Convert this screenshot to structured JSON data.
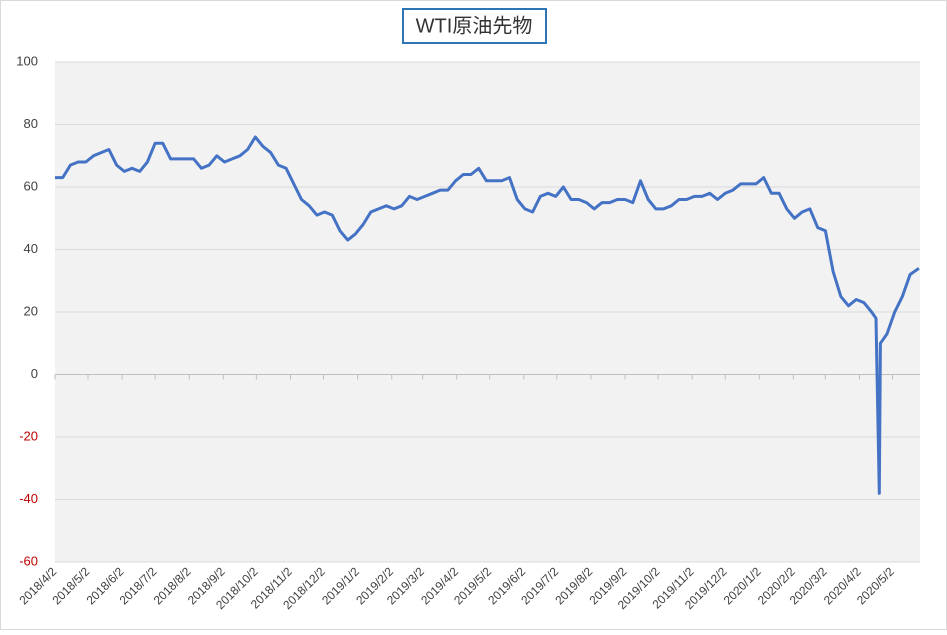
{
  "chart_data": {
    "type": "line",
    "title": "WTI原油先物",
    "x": [
      "2018/4/2",
      "2018/4/9",
      "2018/4/16",
      "2018/4/23",
      "2018/4/30",
      "2018/5/7",
      "2018/5/14",
      "2018/5/21",
      "2018/5/28",
      "2018/6/4",
      "2018/6/11",
      "2018/6/18",
      "2018/6/25",
      "2018/7/2",
      "2018/7/9",
      "2018/7/16",
      "2018/7/23",
      "2018/7/30",
      "2018/8/6",
      "2018/8/13",
      "2018/8/20",
      "2018/8/27",
      "2018/9/3",
      "2018/9/10",
      "2018/9/17",
      "2018/9/24",
      "2018/10/1",
      "2018/10/8",
      "2018/10/15",
      "2018/10/22",
      "2018/10/29",
      "2018/11/5",
      "2018/11/12",
      "2018/11/19",
      "2018/11/26",
      "2018/12/3",
      "2018/12/10",
      "2018/12/17",
      "2018/12/24",
      "2018/12/31",
      "2019/1/7",
      "2019/1/14",
      "2019/1/21",
      "2019/1/28",
      "2019/2/4",
      "2019/2/11",
      "2019/2/18",
      "2019/2/25",
      "2019/3/4",
      "2019/3/11",
      "2019/3/18",
      "2019/3/25",
      "2019/4/1",
      "2019/4/8",
      "2019/4/15",
      "2019/4/22",
      "2019/4/29",
      "2019/5/6",
      "2019/5/13",
      "2019/5/20",
      "2019/5/27",
      "2019/6/3",
      "2019/6/10",
      "2019/6/17",
      "2019/6/24",
      "2019/7/1",
      "2019/7/8",
      "2019/7/15",
      "2019/7/22",
      "2019/7/29",
      "2019/8/5",
      "2019/8/12",
      "2019/8/19",
      "2019/8/26",
      "2019/9/2",
      "2019/9/9",
      "2019/9/16",
      "2019/9/23",
      "2019/9/30",
      "2019/10/7",
      "2019/10/14",
      "2019/10/21",
      "2019/10/28",
      "2019/11/4",
      "2019/11/11",
      "2019/11/18",
      "2019/11/25",
      "2019/12/2",
      "2019/12/9",
      "2019/12/16",
      "2019/12/23",
      "2019/12/30",
      "2020/1/6",
      "2020/1/13",
      "2020/1/20",
      "2020/1/27",
      "2020/2/3",
      "2020/2/10",
      "2020/2/17",
      "2020/2/24",
      "2020/3/2",
      "2020/3/9",
      "2020/3/16",
      "2020/3/23",
      "2020/3/30",
      "2020/4/6",
      "2020/4/13",
      "2020/4/17",
      "2020/4/20",
      "2020/4/21",
      "2020/4/27",
      "2020/5/4",
      "2020/5/11",
      "2020/5/18",
      "2020/5/26"
    ],
    "values": [
      63,
      63,
      67,
      68,
      68,
      70,
      71,
      72,
      67,
      65,
      66,
      65,
      68,
      74,
      74,
      69,
      69,
      69,
      69,
      66,
      67,
      70,
      68,
      69,
      70,
      72,
      76,
      73,
      71,
      67,
      66,
      61,
      56,
      54,
      51,
      52,
      51,
      46,
      43,
      45,
      48,
      52,
      53,
      54,
      53,
      54,
      57,
      56,
      57,
      58,
      59,
      59,
      62,
      64,
      64,
      66,
      62,
      62,
      62,
      63,
      56,
      53,
      52,
      57,
      58,
      57,
      60,
      56,
      56,
      55,
      53,
      55,
      55,
      56,
      56,
      55,
      62,
      56,
      53,
      53,
      54,
      56,
      56,
      57,
      57,
      58,
      56,
      58,
      59,
      61,
      61,
      61,
      63,
      58,
      58,
      53,
      50,
      52,
      53,
      47,
      46,
      33,
      25,
      22,
      24,
      23,
      20,
      18,
      -38,
      10,
      13,
      20,
      25,
      32,
      34
    ],
    "color": "#4472c4",
    "xlim": [
      "2018/4/2",
      "2020/5/27"
    ],
    "xticks": [
      "2018/4/2",
      "2018/5/2",
      "2018/6/2",
      "2018/7/2",
      "2018/8/2",
      "2018/9/2",
      "2018/10/2",
      "2018/11/2",
      "2018/12/2",
      "2019/1/2",
      "2019/2/2",
      "2019/3/2",
      "2019/4/2",
      "2019/5/2",
      "2019/6/2",
      "2019/7/2",
      "2019/8/2",
      "2019/9/2",
      "2019/10/2",
      "2019/11/2",
      "2019/12/2",
      "2020/1/2",
      "2020/2/2",
      "2020/3/2",
      "2020/4/2",
      "2020/5/2"
    ],
    "ylim": [
      -60,
      100
    ],
    "yticks": [
      -60,
      -40,
      -20,
      0,
      20,
      40,
      60,
      80,
      100
    ],
    "grid": true,
    "negative_tick_color": "#c00000"
  }
}
